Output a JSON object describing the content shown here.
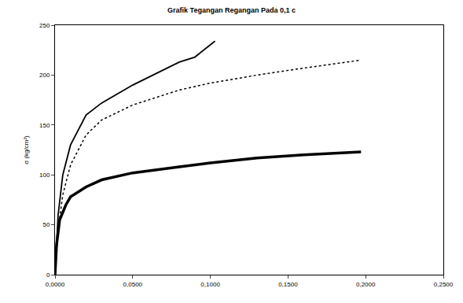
{
  "chart_data": {
    "type": "line",
    "title": "Grafik Tegangan Regangan Pada 0,1 c",
    "y_label": "σ (kg/cm²)",
    "xlim": [
      0,
      0.25
    ],
    "xticks": [
      {
        "value": 0,
        "label": "0,0000"
      },
      {
        "value": 0.05,
        "label": "0,0500"
      },
      {
        "value": 0.1,
        "label": "0,1000"
      },
      {
        "value": 0.15,
        "label": "0,1500"
      },
      {
        "value": 0.2,
        "label": "0,2000"
      },
      {
        "value": 0.25,
        "label": "0,2500"
      }
    ],
    "ylim": [
      0,
      250
    ],
    "yticks": [
      0,
      50,
      100,
      150,
      200,
      250
    ],
    "grid": false,
    "series": [
      {
        "color": "#000000",
        "line_style": "solid",
        "x": [
          0,
          0.002,
          0.005,
          0.01,
          0.02,
          0.03,
          0.05,
          0.07,
          0.08,
          0.09,
          0.103
        ],
        "values": [
          0,
          60,
          100,
          130,
          160,
          172,
          190,
          205,
          213,
          218,
          234
        ]
      },
      {
        "color": "#000000",
        "line_style": "dotted",
        "x": [
          0,
          0.002,
          0.005,
          0.01,
          0.02,
          0.03,
          0.05,
          0.08,
          0.1,
          0.13,
          0.16,
          0.197
        ],
        "values": [
          0,
          45,
          80,
          110,
          140,
          155,
          170,
          185,
          192,
          200,
          207,
          215
        ]
      },
      {
        "color": "#000000",
        "line_style": "thick",
        "x": [
          0,
          0.001,
          0.003,
          0.007,
          0.01,
          0.02,
          0.03,
          0.05,
          0.08,
          0.1,
          0.13,
          0.16,
          0.197
        ],
        "values": [
          0,
          30,
          55,
          70,
          78,
          88,
          95,
          102,
          108,
          112,
          117,
          120,
          123
        ]
      }
    ]
  }
}
